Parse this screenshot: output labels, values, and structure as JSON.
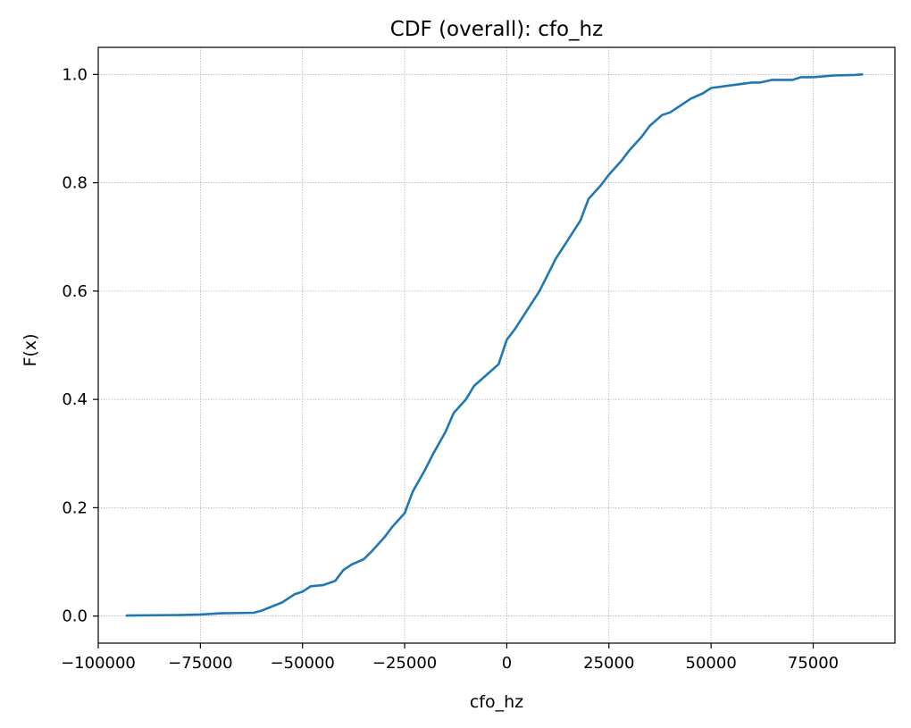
{
  "chart_data": {
    "type": "line",
    "title": "CDF (overall): cfo_hz",
    "xlabel": "cfo_hz",
    "ylabel": "F(x)",
    "xlim": [
      -100000,
      95000
    ],
    "ylim": [
      -0.05,
      1.05
    ],
    "xticks": [
      -100000,
      -75000,
      -50000,
      -25000,
      0,
      25000,
      50000,
      75000
    ],
    "yticks": [
      0.0,
      0.2,
      0.4,
      0.6,
      0.8,
      1.0
    ],
    "xtick_labels": [
      "−100000",
      "−75000",
      "−50000",
      "−25000",
      "0",
      "25000",
      "50000",
      "75000"
    ],
    "ytick_labels": [
      "0.0",
      "0.2",
      "0.4",
      "0.6",
      "0.8",
      "1.0"
    ],
    "grid": true,
    "color": "#1f77b4",
    "series": [
      {
        "x": [
          -93000,
          -80000,
          -75000,
          -70000,
          -62000,
          -60000,
          -55000,
          -52000,
          -50000,
          -48000,
          -45000,
          -42000,
          -40000,
          -38000,
          -35000,
          -33000,
          -30000,
          -28000,
          -25000,
          -23000,
          -20000,
          -18000,
          -15000,
          -13000,
          -10000,
          -8000,
          -5000,
          -2000,
          0,
          2000,
          5000,
          8000,
          10000,
          12000,
          15000,
          18000,
          20000,
          23000,
          25000,
          28000,
          30000,
          33000,
          35000,
          38000,
          40000,
          43000,
          45000,
          48000,
          50000,
          55000,
          60000,
          62000,
          65000,
          70000,
          72000,
          75000,
          80000,
          85000,
          87000
        ],
        "y": [
          0.001,
          0.002,
          0.003,
          0.005,
          0.006,
          0.01,
          0.025,
          0.04,
          0.045,
          0.055,
          0.057,
          0.065,
          0.085,
          0.095,
          0.105,
          0.12,
          0.145,
          0.165,
          0.19,
          0.23,
          0.27,
          0.3,
          0.34,
          0.375,
          0.4,
          0.425,
          0.445,
          0.465,
          0.51,
          0.53,
          0.565,
          0.6,
          0.63,
          0.66,
          0.695,
          0.73,
          0.77,
          0.795,
          0.815,
          0.84,
          0.86,
          0.885,
          0.905,
          0.925,
          0.93,
          0.945,
          0.955,
          0.965,
          0.975,
          0.98,
          0.985,
          0.985,
          0.99,
          0.99,
          0.995,
          0.995,
          0.998,
          0.999,
          1.0
        ]
      }
    ]
  }
}
